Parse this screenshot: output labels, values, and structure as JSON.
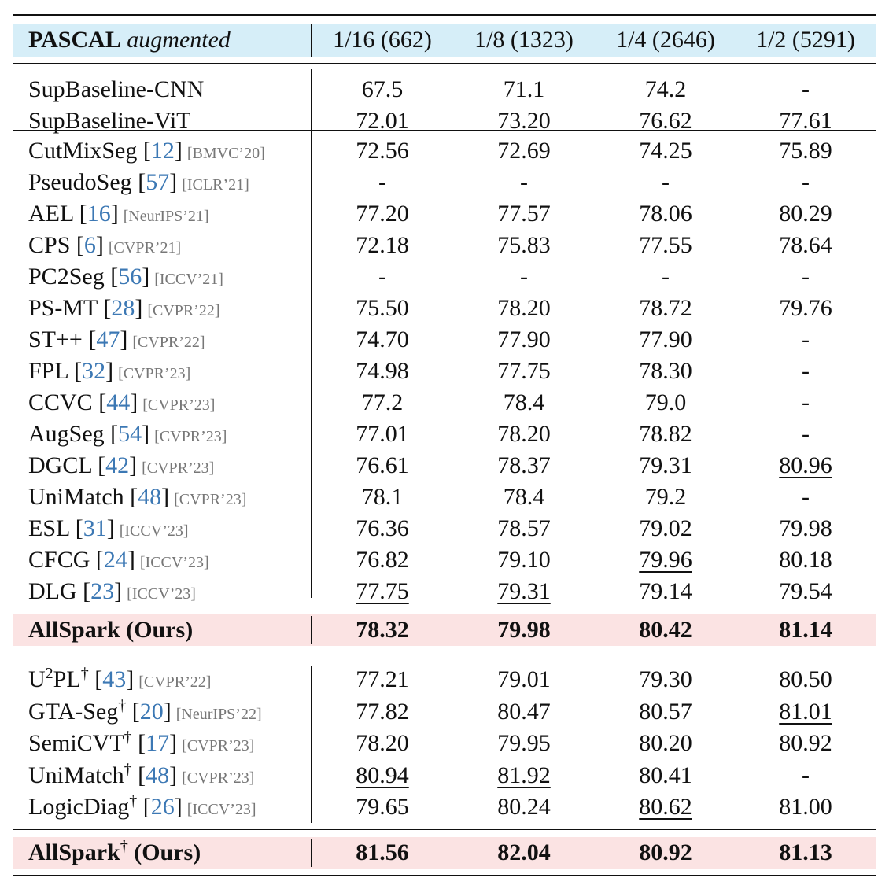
{
  "header": {
    "dataset_bold": "PASCAL",
    "dataset_italic": "augmented",
    "columns": [
      "1/16 (662)",
      "1/8 (1323)",
      "1/4 (2646)",
      "1/2 (5291)"
    ]
  },
  "colors": {
    "header_band": "#d6eef8",
    "ours_band": "#fbe3e3",
    "reference_link": "#3c78b4",
    "venue": "#777777"
  },
  "baselines": [
    {
      "name": "SupBaseline-CNN",
      "values": [
        "67.5",
        "71.1",
        "74.2",
        "-"
      ]
    },
    {
      "name": "SupBaseline-ViT",
      "values": [
        "72.01",
        "73.20",
        "76.62",
        "77.61"
      ]
    }
  ],
  "methods": [
    {
      "name": "CutMixSeg",
      "ref": "12",
      "venue": "[BMVC’20]",
      "values": [
        "72.56",
        "72.69",
        "74.25",
        "75.89"
      ]
    },
    {
      "name": "PseudoSeg",
      "ref": "57",
      "venue": "[ICLR’21]",
      "values": [
        "-",
        "-",
        "-",
        "-"
      ]
    },
    {
      "name": "AEL",
      "ref": "16",
      "venue": "[NeurIPS’21]",
      "values": [
        "77.20",
        "77.57",
        "78.06",
        "80.29"
      ]
    },
    {
      "name": "CPS",
      "ref": "6",
      "venue": "[CVPR’21]",
      "values": [
        "72.18",
        "75.83",
        "77.55",
        "78.64"
      ]
    },
    {
      "name": "PC2Seg",
      "ref": "56",
      "venue": "[ICCV’21]",
      "values": [
        "-",
        "-",
        "-",
        "-"
      ]
    },
    {
      "name": "PS-MT",
      "ref": "28",
      "venue": "[CVPR’22]",
      "values": [
        "75.50",
        "78.20",
        "78.72",
        "79.76"
      ]
    },
    {
      "name": "ST++",
      "ref": "47",
      "venue": "[CVPR’22]",
      "values": [
        "74.70",
        "77.90",
        "77.90",
        "-"
      ]
    },
    {
      "name": "FPL",
      "ref": "32",
      "venue": "[CVPR’23]",
      "values": [
        "74.98",
        "77.75",
        "78.30",
        "-"
      ]
    },
    {
      "name": "CCVC",
      "ref": "44",
      "venue": "[CVPR’23]",
      "values": [
        "77.2",
        "78.4",
        "79.0",
        "-"
      ]
    },
    {
      "name": "AugSeg",
      "ref": "54",
      "venue": "[CVPR’23]",
      "values": [
        "77.01",
        "78.20",
        "78.82",
        "-"
      ]
    },
    {
      "name": "DGCL",
      "ref": "42",
      "venue": "[CVPR’23]",
      "values": [
        "76.61",
        "78.37",
        "79.31",
        "80.96"
      ]
    },
    {
      "name": "UniMatch",
      "ref": "48",
      "venue": "[CVPR’23]",
      "values": [
        "78.1",
        "78.4",
        "79.2",
        "-"
      ]
    },
    {
      "name": "ESL",
      "ref": "31",
      "venue": "[ICCV’23]",
      "values": [
        "76.36",
        "78.57",
        "79.02",
        "79.98"
      ]
    },
    {
      "name": "CFCG",
      "ref": "24",
      "venue": "[ICCV’23]",
      "values": [
        "76.82",
        "79.10",
        "79.96",
        "80.18"
      ]
    },
    {
      "name": "DLG",
      "ref": "23",
      "venue": "[ICCV’23]",
      "values": [
        "77.75",
        "79.31",
        "79.14",
        "79.54"
      ]
    }
  ],
  "ours": {
    "name": "AllSpark",
    "suffix": " (Ours)",
    "values": [
      "78.32",
      "79.98",
      "80.42",
      "81.14"
    ]
  },
  "methods_dagger": [
    {
      "name_pre": "U",
      "sup": "2",
      "name_post": "PL",
      "dagger": "†",
      "ref": "43",
      "venue": "[CVPR’22]",
      "values": [
        "77.21",
        "79.01",
        "79.30",
        "80.50"
      ]
    },
    {
      "name_pre": "GTA-Seg",
      "sup": "",
      "name_post": "",
      "dagger": "†",
      "ref": "20",
      "venue": "[NeurIPS’22]",
      "values": [
        "77.82",
        "80.47",
        "80.57",
        "81.01"
      ]
    },
    {
      "name_pre": "SemiCVT",
      "sup": "",
      "name_post": "",
      "dagger": "†",
      "ref": "17",
      "venue": "[CVPR’23]",
      "values": [
        "78.20",
        "79.95",
        "80.20",
        "80.92"
      ]
    },
    {
      "name_pre": "UniMatch",
      "sup": "",
      "name_post": "",
      "dagger": "†",
      "ref": "48",
      "venue": "[CVPR’23]",
      "values": [
        "80.94",
        "81.92",
        "80.41",
        "-"
      ]
    },
    {
      "name_pre": "LogicDiag",
      "sup": "",
      "name_post": "",
      "dagger": "†",
      "ref": "26",
      "venue": "[ICCV’23]",
      "values": [
        "79.65",
        "80.24",
        "80.62",
        "81.00"
      ]
    }
  ],
  "ours_dagger": {
    "name": "AllSpark",
    "dagger": "†",
    "suffix": " (Ours)",
    "values": [
      "81.56",
      "82.04",
      "80.92",
      "81.13"
    ]
  },
  "underlined": {
    "methods": [
      [
        10,
        3
      ],
      [
        13,
        2
      ],
      [
        14,
        0
      ],
      [
        14,
        1
      ]
    ],
    "methods_dagger": [
      [
        1,
        3
      ],
      [
        3,
        0
      ],
      [
        3,
        1
      ],
      [
        4,
        2
      ]
    ]
  }
}
